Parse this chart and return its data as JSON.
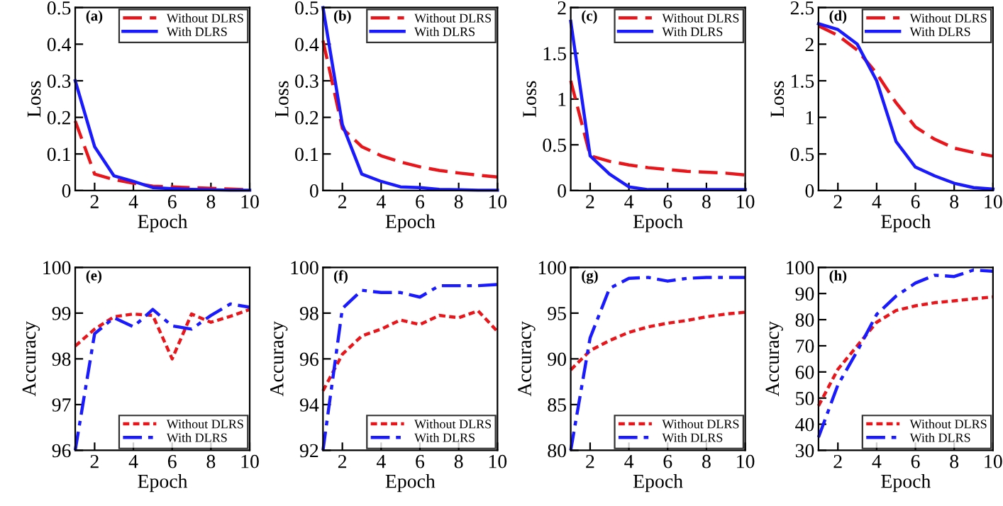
{
  "chart_data": [
    {
      "type": "line",
      "xlabel": "Epoch",
      "ylabel": "Loss",
      "annotations": [
        "(a)"
      ],
      "x": [
        1,
        2,
        3,
        4,
        5,
        6,
        7,
        8,
        9,
        10
      ],
      "xlim": [
        1,
        10
      ],
      "xticks": [
        2,
        4,
        6,
        8,
        10
      ],
      "ylim": [
        0,
        0.5
      ],
      "yticks": [
        0,
        0.1,
        0.2,
        0.3,
        0.4,
        0.5
      ],
      "legend": "top right",
      "series": [
        {
          "name": "Without DLRS",
          "color": "#e8151b",
          "line_style": "dashed",
          "values": [
            0.19,
            0.045,
            0.03,
            0.02,
            0.012,
            0.01,
            0.008,
            0.006,
            0.004,
            0.002
          ]
        },
        {
          "name": "With DLRS",
          "color": "#1a1aff",
          "line_style": "solid",
          "values": [
            0.3,
            0.12,
            0.04,
            0.025,
            0.008,
            0.005,
            0.003,
            0.002,
            0.001,
            0.001
          ]
        }
      ]
    },
    {
      "type": "line",
      "xlabel": "Epoch",
      "ylabel": "Loss",
      "annotations": [
        "(b)"
      ],
      "x": [
        1,
        2,
        3,
        4,
        5,
        6,
        7,
        8,
        9,
        10
      ],
      "xlim": [
        1,
        10
      ],
      "xticks": [
        2,
        4,
        6,
        8,
        10
      ],
      "ylim": [
        0,
        0.5
      ],
      "yticks": [
        0,
        0.1,
        0.2,
        0.3,
        0.4,
        0.5
      ],
      "legend": "top right",
      "series": [
        {
          "name": "Without DLRS",
          "color": "#e8151b",
          "line_style": "dashed",
          "values": [
            0.41,
            0.17,
            0.12,
            0.095,
            0.078,
            0.065,
            0.055,
            0.048,
            0.042,
            0.037
          ]
        },
        {
          "name": "With DLRS",
          "color": "#1a1aff",
          "line_style": "solid",
          "values": [
            0.5,
            0.18,
            0.045,
            0.025,
            0.01,
            0.008,
            0.003,
            0.002,
            0.001,
            0.001
          ]
        }
      ]
    },
    {
      "type": "line",
      "xlabel": "Epoch",
      "ylabel": "Loss",
      "annotations": [
        "(c)"
      ],
      "x": [
        1,
        2,
        3,
        4,
        5,
        6,
        7,
        8,
        9,
        10
      ],
      "xlim": [
        1,
        10
      ],
      "xticks": [
        2,
        4,
        6,
        8,
        10
      ],
      "ylim": [
        0,
        2
      ],
      "yticks": [
        0,
        0.5,
        1,
        1.5,
        2
      ],
      "legend": "top right",
      "series": [
        {
          "name": "Without DLRS",
          "color": "#e8151b",
          "line_style": "dashed",
          "values": [
            1.2,
            0.38,
            0.32,
            0.28,
            0.25,
            0.23,
            0.21,
            0.2,
            0.19,
            0.17
          ]
        },
        {
          "name": "With DLRS",
          "color": "#1a1aff",
          "line_style": "solid",
          "values": [
            1.85,
            0.38,
            0.18,
            0.04,
            0.01,
            0.01,
            0.01,
            0.01,
            0.01,
            0.01
          ]
        }
      ]
    },
    {
      "type": "line",
      "xlabel": "Epoch",
      "ylabel": "Loss",
      "annotations": [
        "(d)"
      ],
      "x": [
        1,
        2,
        3,
        4,
        5,
        6,
        7,
        8,
        9,
        10
      ],
      "xlim": [
        1,
        10
      ],
      "xticks": [
        2,
        4,
        6,
        8,
        10
      ],
      "ylim": [
        0,
        2.5
      ],
      "yticks": [
        0,
        0.5,
        1,
        1.5,
        2,
        2.5
      ],
      "legend": "top right",
      "series": [
        {
          "name": "Without DLRS",
          "color": "#e8151b",
          "line_style": "dashed",
          "values": [
            2.25,
            2.12,
            1.92,
            1.6,
            1.2,
            0.87,
            0.7,
            0.58,
            0.52,
            0.47
          ]
        },
        {
          "name": "With DLRS",
          "color": "#1a1aff",
          "line_style": "solid",
          "values": [
            2.28,
            2.2,
            2.0,
            1.5,
            0.67,
            0.32,
            0.2,
            0.1,
            0.04,
            0.02
          ]
        }
      ]
    },
    {
      "type": "line",
      "xlabel": "Epoch",
      "ylabel": "Accuracy",
      "annotations": [
        "(e)"
      ],
      "x": [
        1,
        2,
        3,
        4,
        5,
        6,
        7,
        8,
        9,
        10
      ],
      "xlim": [
        1,
        10
      ],
      "xticks": [
        2,
        4,
        6,
        8,
        10
      ],
      "ylim": [
        96,
        100
      ],
      "yticks": [
        96,
        97,
        98,
        99,
        100
      ],
      "legend": "bottom right",
      "series": [
        {
          "name": "Without DLRS",
          "color": "#e8151b",
          "line_style": "dotted",
          "values": [
            98.28,
            98.65,
            98.92,
            98.98,
            98.95,
            98.0,
            98.98,
            98.8,
            98.93,
            99.08
          ]
        },
        {
          "name": "With DLRS",
          "color": "#1a1aff",
          "line_style": "dashdot",
          "values": [
            96.0,
            98.55,
            98.9,
            98.7,
            99.08,
            98.72,
            98.65,
            98.95,
            99.2,
            99.13
          ]
        }
      ]
    },
    {
      "type": "line",
      "xlabel": "Epoch",
      "ylabel": "Accuracy",
      "annotations": [
        "(f)"
      ],
      "x": [
        1,
        2,
        3,
        4,
        5,
        6,
        7,
        8,
        9,
        10
      ],
      "xlim": [
        1,
        10
      ],
      "xticks": [
        2,
        4,
        6,
        8,
        10
      ],
      "ylim": [
        92,
        100
      ],
      "yticks": [
        92,
        94,
        96,
        98,
        100
      ],
      "legend": "bottom right",
      "series": [
        {
          "name": "Without DLRS",
          "color": "#e8151b",
          "line_style": "dotted",
          "values": [
            94.6,
            96.2,
            97.0,
            97.3,
            97.7,
            97.5,
            97.9,
            97.8,
            98.1,
            97.2
          ]
        },
        {
          "name": "With DLRS",
          "color": "#1a1aff",
          "line_style": "dashdot",
          "values": [
            92.0,
            98.2,
            99.0,
            98.9,
            98.9,
            98.7,
            99.2,
            99.2,
            99.2,
            99.25
          ]
        }
      ]
    },
    {
      "type": "line",
      "xlabel": "Epoch",
      "ylabel": "Accuracy",
      "annotations": [
        "(g)"
      ],
      "x": [
        1,
        2,
        3,
        4,
        5,
        6,
        7,
        8,
        9,
        10
      ],
      "xlim": [
        1,
        10
      ],
      "xticks": [
        2,
        4,
        6,
        8,
        10
      ],
      "ylim": [
        80,
        100
      ],
      "yticks": [
        80,
        85,
        90,
        95,
        100
      ],
      "legend": "bottom right",
      "series": [
        {
          "name": "Without DLRS",
          "color": "#e8151b",
          "line_style": "dotted",
          "values": [
            88.8,
            90.9,
            92.0,
            92.9,
            93.5,
            93.9,
            94.2,
            94.6,
            94.9,
            95.1
          ]
        },
        {
          "name": "With DLRS",
          "color": "#1a1aff",
          "line_style": "dashdot",
          "values": [
            80.0,
            92.3,
            97.7,
            98.8,
            98.9,
            98.5,
            98.8,
            98.9,
            98.9,
            98.9
          ]
        }
      ]
    },
    {
      "type": "line",
      "xlabel": "Epoch",
      "ylabel": "Accuracy",
      "annotations": [
        "(h)"
      ],
      "x": [
        1,
        2,
        3,
        4,
        5,
        6,
        7,
        8,
        9,
        10
      ],
      "xlim": [
        1,
        10
      ],
      "xticks": [
        2,
        4,
        6,
        8,
        10
      ],
      "ylim": [
        30,
        100
      ],
      "yticks": [
        30,
        40,
        50,
        60,
        70,
        80,
        90,
        100
      ],
      "legend": "bottom right",
      "series": [
        {
          "name": "Without DLRS",
          "color": "#e8151b",
          "line_style": "dotted",
          "values": [
            47,
            61,
            70,
            79,
            83.5,
            85.3,
            86.5,
            87.2,
            88,
            88.7
          ]
        },
        {
          "name": "With DLRS",
          "color": "#1a1aff",
          "line_style": "dashdot",
          "values": [
            35,
            55,
            68,
            82,
            89,
            94,
            97,
            96.5,
            99,
            98.5
          ]
        }
      ]
    }
  ]
}
